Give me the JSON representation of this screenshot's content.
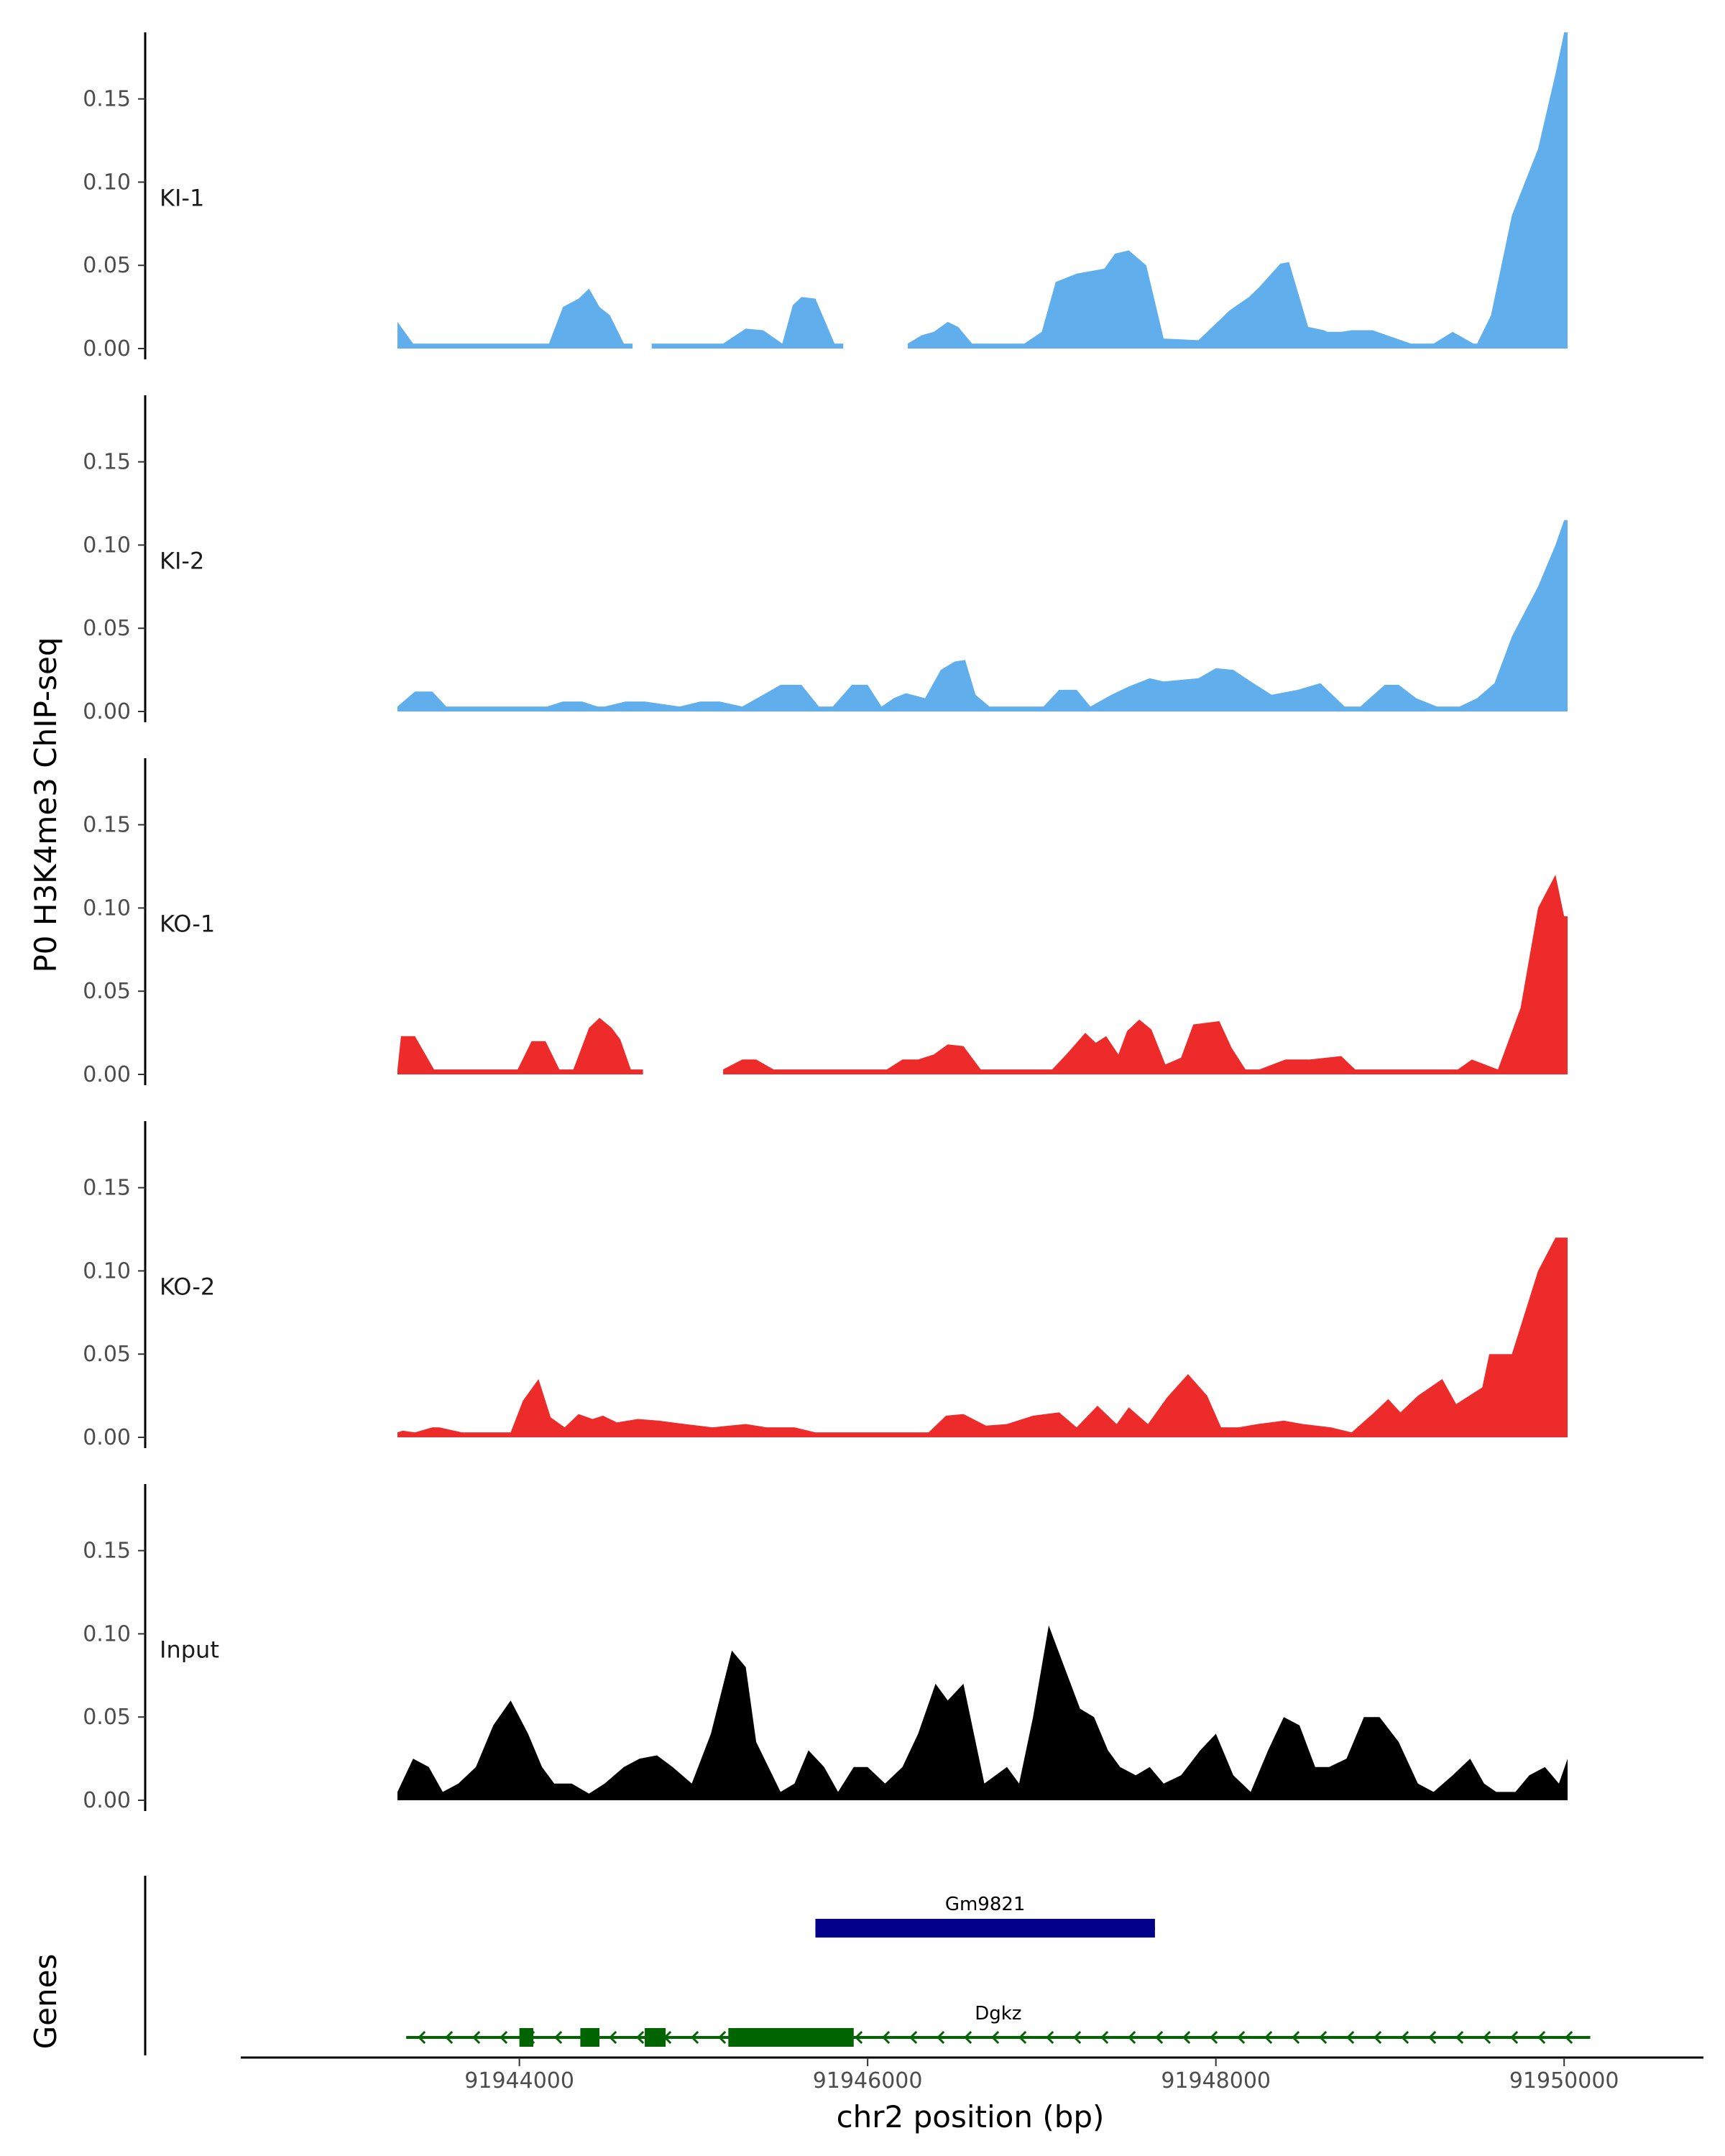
{
  "chart_data": {
    "type": "area",
    "ylabel": "P0 H3K4me3 ChIP-seq",
    "xlabel": "chr2 position (bp)",
    "genes_label": "Genes",
    "xlim": [
      91942400,
      91950800
    ],
    "ylim": [
      0,
      0.19
    ],
    "y_ticks": [
      0,
      0.05,
      0.1,
      0.15
    ],
    "y_tick_labels": [
      "0.00",
      "0.05",
      "0.10",
      "0.15"
    ],
    "x_ticks": [
      91944000,
      91946000,
      91948000,
      91950000
    ],
    "x_tick_labels": [
      "91944000",
      "91946000",
      "91948000",
      "91950000"
    ],
    "tracks": [
      {
        "name": "KI-1",
        "color": "#61AEED",
        "x": [
          91943300,
          91943390,
          91944170,
          91944250,
          91944340,
          91944400,
          91944460,
          91944520,
          91944600,
          91944650,
          91944700,
          91944760,
          91945170,
          91945300,
          91945400,
          91945510,
          91945570,
          91945620,
          91945700,
          91945810,
          91945860,
          91945920,
          91946230,
          91946310,
          91946380,
          91946460,
          91946520,
          91946600,
          91946680,
          91946790,
          91946900,
          91947000,
          91947080,
          91947200,
          91947360,
          91947420,
          91947500,
          91947600,
          91947700,
          91947900,
          91948080,
          91948190,
          91948250,
          91948370,
          91948420,
          91948530,
          91948620,
          91948640,
          91948720,
          91948780,
          91948900,
          91949120,
          91949230,
          91949250,
          91949360,
          91949480,
          91949500,
          91949580,
          91949700,
          91949850,
          91949950,
          91950000,
          91950020
        ],
        "y": [
          0.016,
          0.003,
          0.003,
          0.025,
          0.03,
          0.036,
          0.025,
          0.02,
          0.003,
          0.003,
          null,
          0.003,
          0.003,
          0.012,
          0.011,
          0.003,
          0.026,
          0.031,
          0.03,
          0.003,
          0.003,
          null,
          0.003,
          0.008,
          0.01,
          0.016,
          0.013,
          0.003,
          0.003,
          0.003,
          0.003,
          0.01,
          0.04,
          0.045,
          0.048,
          0.057,
          0.059,
          0.05,
          0.006,
          0.005,
          0.023,
          0.031,
          0.037,
          0.051,
          0.052,
          0.013,
          0.011,
          0.01,
          0.01,
          0.011,
          0.011,
          0.003,
          0.003,
          0.003,
          0.01,
          0.003,
          0.003,
          0.02,
          0.08,
          0.12,
          0.165,
          0.19,
          0.19
        ]
      },
      {
        "name": "KI-2",
        "color": "#61AEED",
        "x": [
          91943300,
          91943400,
          91943500,
          91943580,
          91943650,
          91944160,
          91944250,
          91944360,
          91944450,
          91944490,
          91944610,
          91944720,
          91944920,
          91945040,
          91945150,
          91945280,
          91945400,
          91945500,
          91945620,
          91945720,
          91945800,
          91945910,
          91946000,
          91946080,
          91946150,
          91946220,
          91946330,
          91946420,
          91946500,
          91946560,
          91946620,
          91946700,
          91946760,
          91947010,
          91947100,
          91947200,
          91947280,
          91947400,
          91947500,
          91947620,
          91947700,
          91947900,
          91948000,
          91948100,
          91948200,
          91948320,
          91948470,
          91948600,
          91948740,
          91948830,
          91948970,
          91949050,
          91949150,
          91949270,
          91949400,
          91949500,
          91949600,
          91949700,
          91949850,
          91949950,
          91950000,
          91950020
        ],
        "y": [
          0.003,
          0.012,
          0.012,
          0.003,
          0.003,
          0.003,
          0.006,
          0.006,
          0.003,
          0.003,
          0.006,
          0.006,
          0.003,
          0.006,
          0.006,
          0.003,
          0.01,
          0.016,
          0.016,
          0.003,
          0.003,
          0.016,
          0.016,
          0.003,
          0.008,
          0.011,
          0.008,
          0.025,
          0.03,
          0.031,
          0.01,
          0.003,
          0.003,
          0.003,
          0.013,
          0.013,
          0.003,
          0.01,
          0.015,
          0.02,
          0.018,
          0.02,
          0.026,
          0.025,
          0.018,
          0.01,
          0.013,
          0.017,
          0.003,
          0.003,
          0.016,
          0.016,
          0.008,
          0.003,
          0.003,
          0.008,
          0.017,
          0.045,
          0.075,
          0.1,
          0.115,
          0.115
        ]
      },
      {
        "name": "KO-1",
        "color": "#ED2B2B",
        "x": [
          91943300,
          91943320,
          91943400,
          91943510,
          91943990,
          91944070,
          91944150,
          91944230,
          91944290,
          91944310,
          91944400,
          91944460,
          91944530,
          91944580,
          91944640,
          91944710,
          91944760,
          91945170,
          91945280,
          91945360,
          91945460,
          91946110,
          91946200,
          91946290,
          91946380,
          91946460,
          91946550,
          91946650,
          91946730,
          91946820,
          91947060,
          91947150,
          91947250,
          91947310,
          91947370,
          91947440,
          91947490,
          91947560,
          91947630,
          91947710,
          91947800,
          91947870,
          91948020,
          91948090,
          91948170,
          91948250,
          91948400,
          91948540,
          91948720,
          91948800,
          91948850,
          91948940,
          91949390,
          91949470,
          91949620,
          91949750,
          91949850,
          91949950,
          91950000,
          91950020
        ],
        "y": [
          0.003,
          0.023,
          0.023,
          0.003,
          0.003,
          0.02,
          0.02,
          0.003,
          0.003,
          0.003,
          0.028,
          0.034,
          0.028,
          0.021,
          0.003,
          0.003,
          null,
          0.003,
          0.009,
          0.009,
          0.003,
          0.003,
          0.009,
          0.009,
          0.012,
          0.018,
          0.017,
          0.003,
          0.003,
          0.003,
          0.003,
          0.013,
          0.025,
          0.019,
          0.023,
          0.012,
          0.026,
          0.033,
          0.027,
          0.006,
          0.01,
          0.03,
          0.032,
          0.016,
          0.003,
          0.003,
          0.009,
          0.009,
          0.011,
          0.003,
          0.003,
          0.003,
          0.003,
          0.009,
          0.003,
          0.04,
          0.1,
          0.12,
          0.095,
          0.095
        ]
      },
      {
        "name": "KO-2",
        "color": "#ED2B2B",
        "x": [
          91943300,
          91943330,
          91943400,
          91943500,
          91943540,
          91943670,
          91943950,
          91944020,
          91944110,
          91944180,
          91944260,
          91944340,
          91944420,
          91944480,
          91944560,
          91944680,
          91944800,
          91944950,
          91945110,
          91945300,
          91945420,
          91945580,
          91945700,
          91946350,
          91946450,
          91946550,
          91946680,
          91946800,
          91946950,
          91947100,
          91947200,
          91947320,
          91947430,
          91947500,
          91947610,
          91947720,
          91947840,
          91947950,
          91948030,
          91948130,
          91948240,
          91948390,
          91948500,
          91948660,
          91948780,
          91948910,
          91948990,
          91949060,
          91949160,
          91949300,
          91949380,
          91949530,
          91949570,
          91949630,
          91949700,
          91949850,
          91949950,
          91950000,
          91950020
        ],
        "y": [
          0.003,
          0.004,
          0.003,
          0.006,
          0.006,
          0.003,
          0.003,
          0.022,
          0.035,
          0.012,
          0.006,
          0.014,
          0.011,
          0.013,
          0.009,
          0.011,
          0.01,
          0.008,
          0.006,
          0.008,
          0.006,
          0.006,
          0.003,
          0.003,
          0.013,
          0.014,
          0.007,
          0.008,
          0.013,
          0.015,
          0.006,
          0.019,
          0.008,
          0.018,
          0.008,
          0.024,
          0.038,
          0.025,
          0.006,
          0.006,
          0.008,
          0.01,
          0.008,
          0.006,
          0.003,
          0.015,
          0.023,
          0.015,
          0.025,
          0.035,
          0.02,
          0.03,
          0.05,
          0.05,
          0.05,
          0.1,
          0.12,
          0.12,
          0.12
        ],
        "note": ""
      },
      {
        "name": "Input",
        "color": "#000000",
        "x": [
          91943300,
          91943390,
          91943480,
          91943560,
          91943650,
          91943750,
          91943850,
          91943950,
          91944050,
          91944130,
          91944200,
          91944300,
          91944400,
          91944490,
          91944600,
          91944690,
          91944790,
          91944880,
          91944990,
          91945100,
          91945220,
          91945300,
          91945360,
          91945430,
          91945500,
          91945580,
          91945660,
          91945750,
          91945830,
          91945920,
          91946000,
          91946100,
          91946200,
          91946290,
          91946390,
          91946460,
          91946550,
          91946670,
          91946800,
          91946870,
          91946950,
          91947040,
          91947130,
          91947220,
          91947300,
          91947380,
          91947450,
          91947540,
          91947620,
          91947700,
          91947800,
          91947910,
          91948000,
          91948100,
          91948200,
          91948300,
          91948390,
          91948480,
          91948570,
          91948650,
          91948750,
          91948850,
          91948940,
          91949050,
          91949160,
          91949250,
          91949360,
          91949460,
          91949540,
          91949610,
          91949720,
          91949800,
          91949890,
          91949970,
          91950020
        ],
        "y": [
          0.005,
          0.025,
          0.02,
          0.005,
          0.01,
          0.02,
          0.045,
          0.06,
          0.04,
          0.02,
          0.01,
          0.01,
          0.004,
          0.01,
          0.02,
          0.025,
          0.027,
          0.02,
          0.01,
          0.04,
          0.09,
          0.08,
          0.035,
          0.02,
          0.005,
          0.01,
          0.03,
          0.02,
          0.005,
          0.02,
          0.02,
          0.01,
          0.02,
          0.04,
          0.07,
          0.06,
          0.07,
          0.01,
          0.02,
          0.01,
          0.05,
          0.105,
          0.08,
          0.055,
          0.05,
          0.03,
          0.02,
          0.015,
          0.02,
          0.01,
          0.015,
          0.03,
          0.04,
          0.015,
          0.005,
          0.03,
          0.05,
          0.045,
          0.02,
          0.02,
          0.025,
          0.05,
          0.05,
          0.035,
          0.01,
          0.005,
          0.015,
          0.025,
          0.01,
          0.005,
          0.005,
          0.015,
          0.02,
          0.01,
          0.025
        ]
      }
    ],
    "genes": [
      {
        "name": "Gm9821",
        "color": "#00008B",
        "strand": "+",
        "start": 91945700,
        "end": 91947650,
        "exons": [
          [
            91945700,
            91947650
          ]
        ]
      },
      {
        "name": "Dgkz",
        "color": "#006400",
        "strand": "-",
        "start": 91943350,
        "end": 91950150,
        "exons": [
          [
            91944000,
            91944080
          ],
          [
            91944350,
            91944460
          ],
          [
            91944720,
            91944840
          ],
          [
            91945200,
            91945920
          ]
        ]
      }
    ]
  }
}
